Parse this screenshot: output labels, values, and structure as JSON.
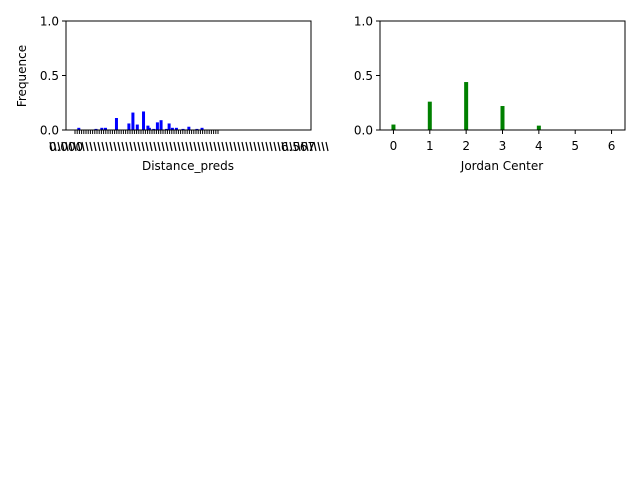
{
  "figure": {
    "background": "#ffffff"
  },
  "chart_data": [
    {
      "type": "bar",
      "title": "",
      "xlabel": "Distance_preds",
      "ylabel": "Frequence",
      "ylim": [
        0,
        1
      ],
      "yticks": [
        "0.0",
        "0.5",
        "1.0"
      ],
      "xlim": [
        0.0,
        6.7
      ],
      "tick_label_left": "0.000",
      "tick_label_right": "6.567",
      "color": "#0000ff",
      "grid": false,
      "legend": "none",
      "x": [
        0.35,
        0.82,
        0.98,
        1.08,
        1.38,
        1.72,
        1.83,
        1.95,
        2.12,
        2.24,
        2.28,
        2.4,
        2.5,
        2.6,
        2.75,
        2.82,
        2.91,
        3.02,
        3.2,
        3.36,
        3.58,
        3.72
      ],
      "values": [
        0.02,
        0.01,
        0.02,
        0.02,
        0.11,
        0.06,
        0.16,
        0.05,
        0.17,
        0.04,
        0.02,
        0.01,
        0.07,
        0.09,
        0.01,
        0.06,
        0.02,
        0.02,
        0.01,
        0.03,
        0.01,
        0.02
      ]
    },
    {
      "type": "bar",
      "title": "",
      "xlabel": "Jordan Center",
      "ylabel": "",
      "ylim": [
        0,
        1
      ],
      "yticks": [
        "0.0",
        "0.5",
        "1.0"
      ],
      "xlim": [
        -0.37,
        6.37
      ],
      "xticks": [
        "0",
        "1",
        "2",
        "3",
        "4",
        "5",
        "6"
      ],
      "color": "#008000",
      "grid": false,
      "legend": "none",
      "categories": [
        0,
        1,
        2,
        3,
        4,
        5,
        6
      ],
      "values": [
        0.05,
        0.26,
        0.44,
        0.22,
        0.04,
        0.0,
        0.0
      ]
    }
  ]
}
